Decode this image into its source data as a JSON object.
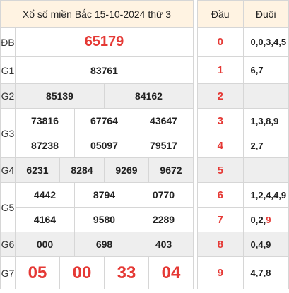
{
  "title": "Xổ số miền Bắc 15-10-2024 thứ 3",
  "prizes": {
    "db": {
      "label": "ĐB",
      "values": [
        "65179"
      ]
    },
    "g1": {
      "label": "G1",
      "values": [
        "83761"
      ]
    },
    "g2": {
      "label": "G2",
      "values": [
        "85139",
        "84162"
      ]
    },
    "g3": {
      "label": "G3",
      "values": [
        "73816",
        "67764",
        "43647",
        "87238",
        "05097",
        "79517"
      ]
    },
    "g4": {
      "label": "G4",
      "values": [
        "6231",
        "8284",
        "9269",
        "9672"
      ]
    },
    "g5": {
      "label": "G5",
      "values": [
        "4442",
        "8794",
        "0770",
        "4164",
        "9580",
        "2289"
      ]
    },
    "g6": {
      "label": "G6",
      "values": [
        "000",
        "698",
        "403"
      ]
    },
    "g7": {
      "label": "G7",
      "values": [
        "05",
        "00",
        "33",
        "04"
      ]
    }
  },
  "loto": {
    "head_label": "Đầu",
    "tail_label": "Đuôi",
    "rows": [
      {
        "head": "0",
        "tail": "0,0,3,4,5"
      },
      {
        "head": "1",
        "tail": "6,7"
      },
      {
        "head": "2",
        "tail": ""
      },
      {
        "head": "3",
        "tail": "1,3,8,9"
      },
      {
        "head": "4",
        "tail": "2,7"
      },
      {
        "head": "5",
        "tail": ""
      },
      {
        "head": "6",
        "tail": "1,2,4,4,9"
      },
      {
        "head": "7",
        "tail_plain": "0,2,",
        "tail_red": "9"
      },
      {
        "head": "8",
        "tail": "0,4,9"
      },
      {
        "head": "9",
        "tail": "4,7,8"
      }
    ]
  },
  "colors": {
    "accent": "#e53935",
    "header_bg": "#fff3e2",
    "stripe_bg": "#eeeeee"
  }
}
